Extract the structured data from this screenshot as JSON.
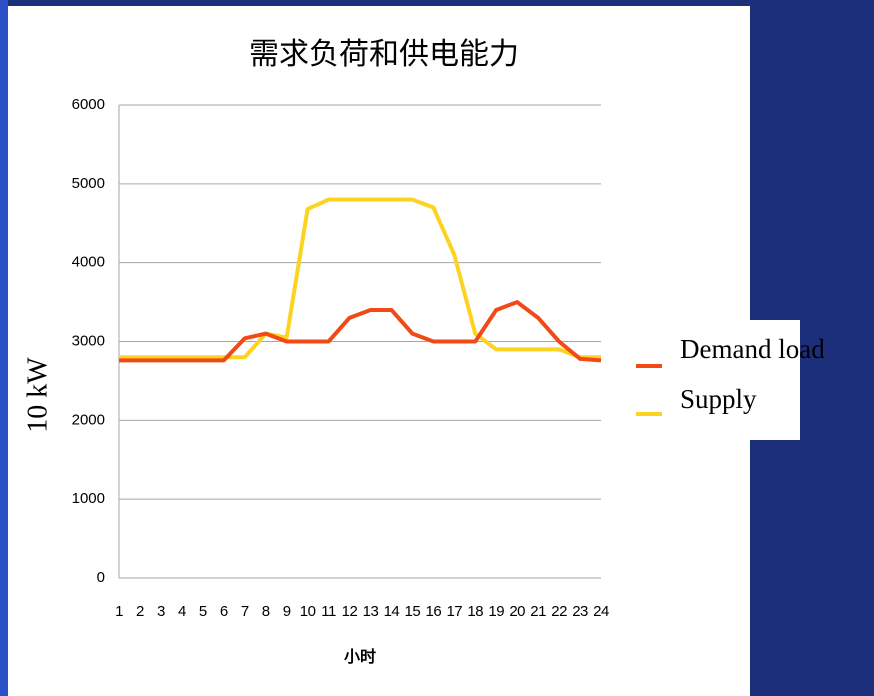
{
  "chart_data": {
    "type": "line",
    "title": "需求负荷和供电能力",
    "x_label": "小时",
    "y_label": "10 kW",
    "categories": [
      "1",
      "2",
      "3",
      "4",
      "5",
      "6",
      "7",
      "8",
      "9",
      "10",
      "11",
      "12",
      "13",
      "14",
      "15",
      "16",
      "17",
      "18",
      "19",
      "20",
      "21",
      "22",
      "23",
      "24"
    ],
    "series": [
      {
        "name": "Demand load",
        "color": "#f24a16",
        "values": [
          2760,
          2760,
          2760,
          2760,
          2760,
          2760,
          3040,
          3100,
          3000,
          3000,
          3000,
          3300,
          3400,
          3400,
          3100,
          3000,
          3000,
          3000,
          3400,
          3500,
          3300,
          3000,
          2780,
          2760
        ]
      },
      {
        "name": "Supply",
        "color": "#fdd321",
        "values": [
          2800,
          2800,
          2800,
          2800,
          2800,
          2800,
          2800,
          3100,
          3050,
          4680,
          4800,
          4800,
          4800,
          4800,
          4800,
          4700,
          4100,
          3100,
          2900,
          2900,
          2900,
          2900,
          2800,
          2800
        ]
      }
    ],
    "ylim": [
      0,
      6000
    ],
    "yticks": [
      0,
      1000,
      2000,
      3000,
      4000,
      5000,
      6000
    ],
    "grid": true,
    "legend": "right"
  }
}
